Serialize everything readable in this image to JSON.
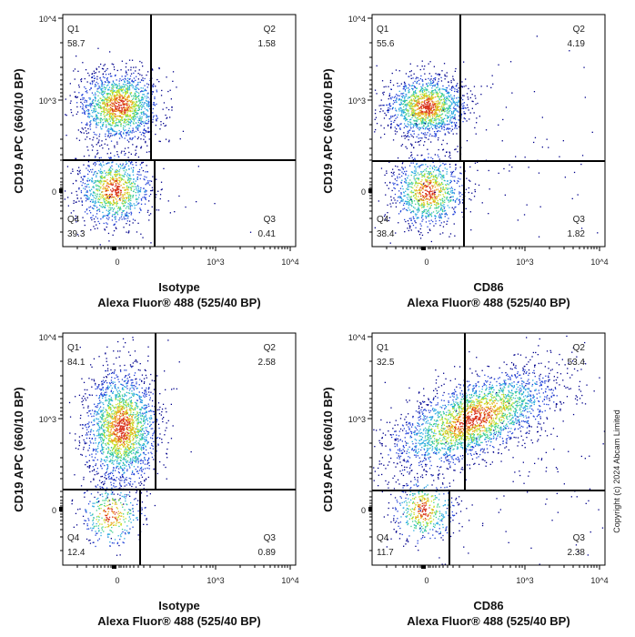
{
  "copyright": "Copyright (c) 2024 Abcam Limited",
  "chart_data": [
    {
      "type": "scatter",
      "subtype": "flow-cytometry density dot plot",
      "xlabel": [
        "Isotype",
        "Alexa Fluor® 488  (525/40 BP)"
      ],
      "ylabel": "CD19 APC (660/10 BP)",
      "x_ticks": [
        "0",
        "10^3",
        "10^4"
      ],
      "y_ticks": [
        "0",
        "10^3",
        "10^4"
      ],
      "x_scale": "biexponential",
      "y_scale": "biexponential",
      "quadrants": [
        {
          "name": "Q1",
          "value": "58.7"
        },
        {
          "name": "Q2",
          "value": "1.58"
        },
        {
          "name": "Q3",
          "value": "0.41"
        },
        {
          "name": "Q4",
          "value": "39.3"
        }
      ]
    },
    {
      "type": "scatter",
      "subtype": "flow-cytometry density dot plot",
      "xlabel": [
        "CD86",
        "Alexa Fluor® 488  (525/40 BP)"
      ],
      "ylabel": "CD19 APC (660/10 BP)",
      "x_ticks": [
        "0",
        "10^3",
        "10^4"
      ],
      "y_ticks": [
        "0",
        "10^3",
        "10^4"
      ],
      "x_scale": "biexponential",
      "y_scale": "biexponential",
      "quadrants": [
        {
          "name": "Q1",
          "value": "55.6"
        },
        {
          "name": "Q2",
          "value": "4.19"
        },
        {
          "name": "Q3",
          "value": "1.82"
        },
        {
          "name": "Q4",
          "value": "38.4"
        }
      ]
    },
    {
      "type": "scatter",
      "subtype": "flow-cytometry density dot plot",
      "xlabel": [
        "Isotype",
        "Alexa Fluor® 488  (525/40 BP)"
      ],
      "ylabel": "CD19 APC (660/10 BP)",
      "x_ticks": [
        "0",
        "10^3",
        "10^4"
      ],
      "y_ticks": [
        "0",
        "10^3",
        "10^4"
      ],
      "x_scale": "biexponential",
      "y_scale": "biexponential",
      "quadrants": [
        {
          "name": "Q1",
          "value": "84.1"
        },
        {
          "name": "Q2",
          "value": "2.58"
        },
        {
          "name": "Q3",
          "value": "0.89"
        },
        {
          "name": "Q4",
          "value": "12.4"
        }
      ]
    },
    {
      "type": "scatter",
      "subtype": "flow-cytometry density dot plot",
      "xlabel": [
        "CD86",
        "Alexa Fluor® 488  (525/40 BP)"
      ],
      "ylabel": "CD19 APC (660/10 BP)",
      "x_ticks": [
        "0",
        "10^3",
        "10^4"
      ],
      "y_ticks": [
        "0",
        "10^3",
        "10^4"
      ],
      "x_scale": "biexponential",
      "y_scale": "biexponential",
      "quadrants": [
        {
          "name": "Q1",
          "value": "32.5"
        },
        {
          "name": "Q2",
          "value": "53.4"
        },
        {
          "name": "Q3",
          "value": "2.38"
        },
        {
          "name": "Q4",
          "value": "11.7"
        }
      ]
    }
  ],
  "colors": {
    "density": [
      "#00008b",
      "#1f3fd8",
      "#25a8e0",
      "#3fd08a",
      "#c8e020",
      "#f0a020",
      "#d8301c"
    ],
    "gate": "#000000"
  }
}
